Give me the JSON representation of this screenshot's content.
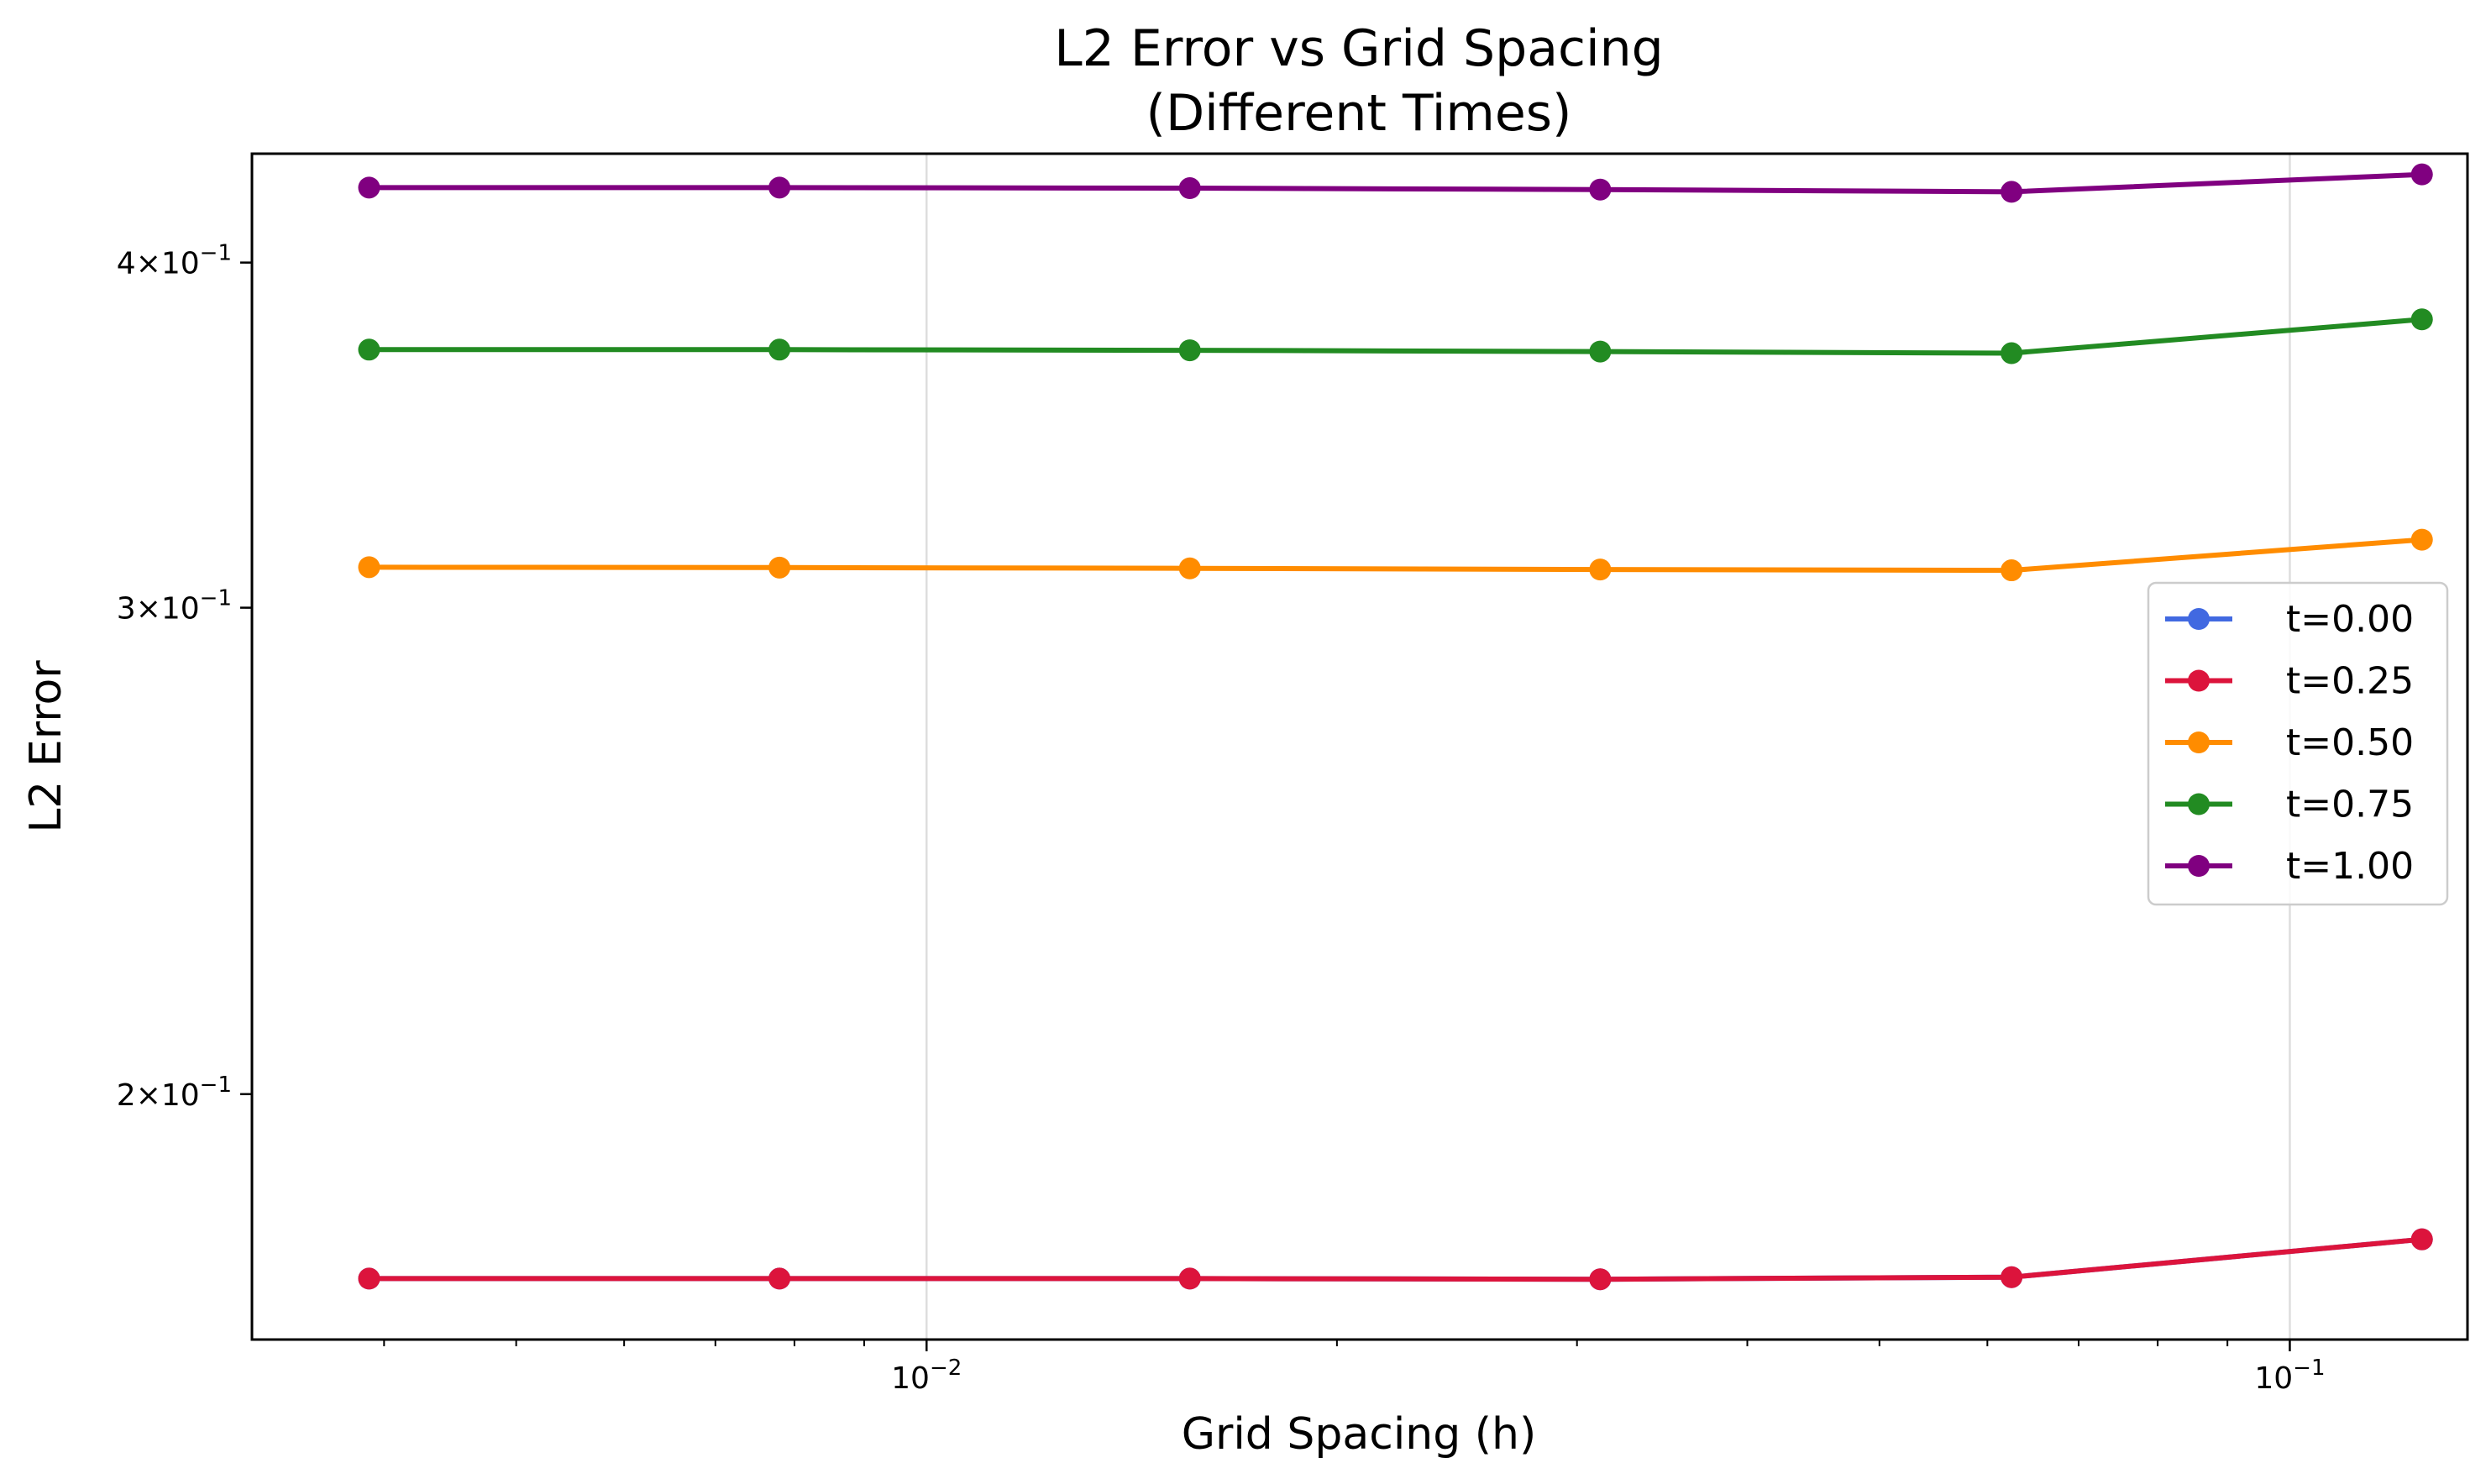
{
  "chart_data": {
    "type": "line",
    "title": "L2 Error vs Grid Spacing",
    "subtitle": "(Different Times)",
    "xlabel": "Grid Spacing (h)",
    "ylabel": "L2 Error",
    "xscale": "log",
    "yscale": "log",
    "xlim": [
      0.0032,
      0.135
    ],
    "ylim": [
      0.163,
      0.438
    ],
    "x_ticks": [
      {
        "value": 0.01,
        "base": "10",
        "exp": "−2"
      },
      {
        "value": 0.1,
        "base": "10",
        "exp": "−1"
      }
    ],
    "y_ticks": [
      {
        "value": 0.2,
        "mant": "2",
        "base": "10",
        "exp": "−1"
      },
      {
        "value": 0.3,
        "mant": "3",
        "base": "10",
        "exp": "−1"
      },
      {
        "value": 0.4,
        "mant": "4",
        "base": "10",
        "exp": "−1"
      }
    ],
    "grid": "x-major",
    "legend_position": "center-right",
    "x": [
      0.0039,
      0.0078,
      0.0156,
      0.0312,
      0.0625,
      0.125
    ],
    "series": [
      {
        "name": "t=0.00",
        "color": "#4169e1",
        "values": [
          0.1715,
          0.1715,
          0.1715,
          0.1714,
          0.1717,
          0.1772
        ]
      },
      {
        "name": "t=0.25",
        "color": "#dc143c",
        "values": [
          0.1715,
          0.1715,
          0.1715,
          0.1714,
          0.1717,
          0.1772
        ]
      },
      {
        "name": "t=0.50",
        "color": "#ff8c00",
        "values": [
          0.3103,
          0.3102,
          0.31,
          0.3097,
          0.3095,
          0.3175
        ]
      },
      {
        "name": "t=0.75",
        "color": "#228b22",
        "values": [
          0.372,
          0.372,
          0.3718,
          0.3714,
          0.3709,
          0.3815
        ]
      },
      {
        "name": "t=1.00",
        "color": "#800080",
        "values": [
          0.4258,
          0.4258,
          0.4256,
          0.4251,
          0.4243,
          0.4305
        ]
      }
    ]
  }
}
